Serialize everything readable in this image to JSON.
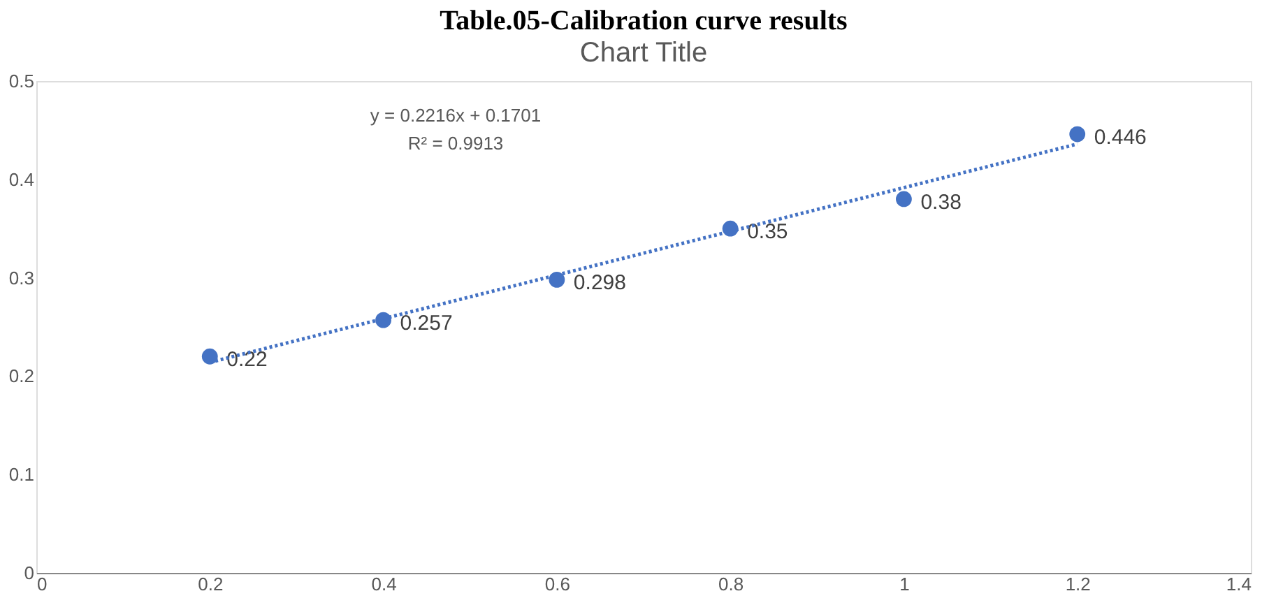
{
  "chart_data": {
    "type": "scatter",
    "title": "Table.05-Calibration curve results",
    "subtitle": "Chart Title",
    "x": [
      0.2,
      0.4,
      0.6,
      0.8,
      1,
      1.2
    ],
    "series": [
      {
        "color": "#4472c4",
        "marker": "circle",
        "values": [
          0.22,
          0.257,
          0.298,
          0.35,
          0.38,
          0.446
        ],
        "value_labels": [
          "0.22",
          "0.257",
          "0.298",
          "0.35",
          "0.38",
          "0.446"
        ]
      },
      {
        "type": "line",
        "color": "#4472c4",
        "line_style": "dotted",
        "marker": "none",
        "x": [
          0.2,
          1.2
        ],
        "values": [
          0.214,
          0.436
        ]
      }
    ],
    "annotations": [
      "y = 0.2216x + 0.1701",
      "R² = 0.9913"
    ],
    "xlim": [
      0,
      1.4
    ],
    "xticks": [
      0,
      0.2,
      0.4,
      0.6,
      0.8,
      1,
      1.2,
      1.4
    ],
    "ylim": [
      0,
      0.5
    ],
    "yticks": [
      0,
      0.1,
      0.2,
      0.3,
      0.4,
      0.5
    ],
    "grid": false
  }
}
